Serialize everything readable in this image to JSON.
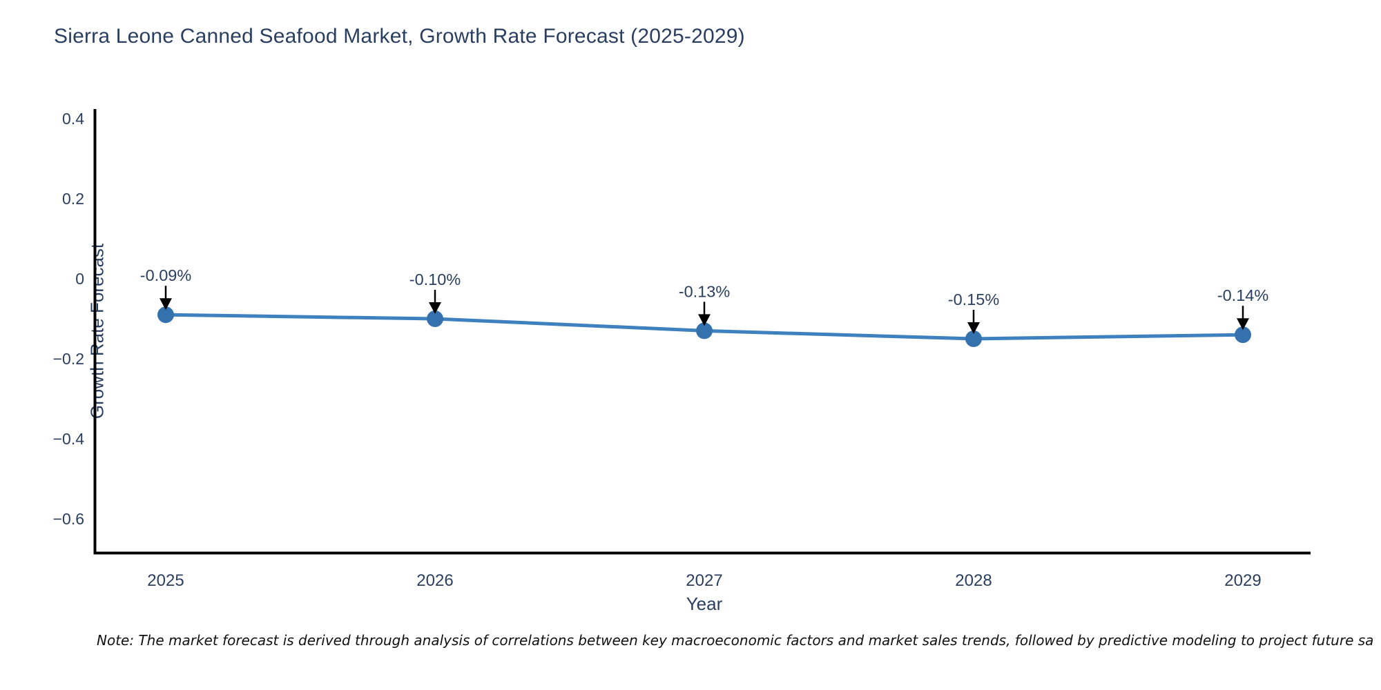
{
  "title": "Sierra Leone Canned Seafood Market, Growth Rate Forecast (2025-2029)",
  "note": "Note: The market forecast is derived through analysis of correlations between key macroeconomic factors and market sales trends, followed by predictive modeling to project future sa",
  "chart_data": {
    "type": "line",
    "title": "Sierra Leone Canned Seafood Market, Growth Rate Forecast (2025-2029)",
    "xlabel": "Year",
    "ylabel": "Growth Rate Forecast",
    "x": [
      2025,
      2026,
      2027,
      2028,
      2029
    ],
    "values": [
      -0.09,
      -0.1,
      -0.13,
      -0.15,
      -0.14
    ],
    "point_labels": [
      "-0.09%",
      "-0.10%",
      "-0.13%",
      "-0.15%",
      "-0.14%"
    ],
    "series_name": "Growth Rate Forecast",
    "yticks": [
      0.4,
      0.2,
      0,
      -0.2,
      -0.4,
      -0.6
    ],
    "ytick_labels": [
      "0.4",
      "0.2",
      "0",
      "−0.2",
      "−0.4",
      "−0.6"
    ],
    "xtick_labels": [
      "2025",
      "2026",
      "2027",
      "2028",
      "2029"
    ],
    "ylim": [
      -0.69,
      0.42
    ],
    "grid": false,
    "legend": "none",
    "line_color": "#3f81be",
    "marker_color": "#3471ad",
    "axis_color": "#000000",
    "text_color": "#2a3f5f",
    "annotation_color": "#2a3f5f",
    "arrow_color": "#000000"
  }
}
